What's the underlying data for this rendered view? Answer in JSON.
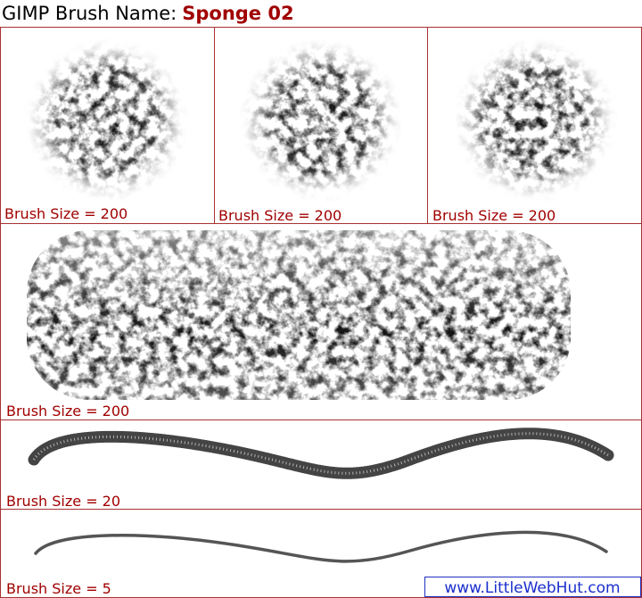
{
  "header": {
    "prefix": "GIMP Brush Name:",
    "name": "Sponge 02"
  },
  "panels": [
    {
      "label": "Brush Size = 200"
    },
    {
      "label": "Brush Size = 200"
    },
    {
      "label": "Brush Size = 200"
    },
    {
      "label": "Brush Size = 200"
    },
    {
      "label": "Brush Size = 20"
    },
    {
      "label": "Brush Size = 5"
    }
  ],
  "watermark": "www.LittleWebHut.com"
}
